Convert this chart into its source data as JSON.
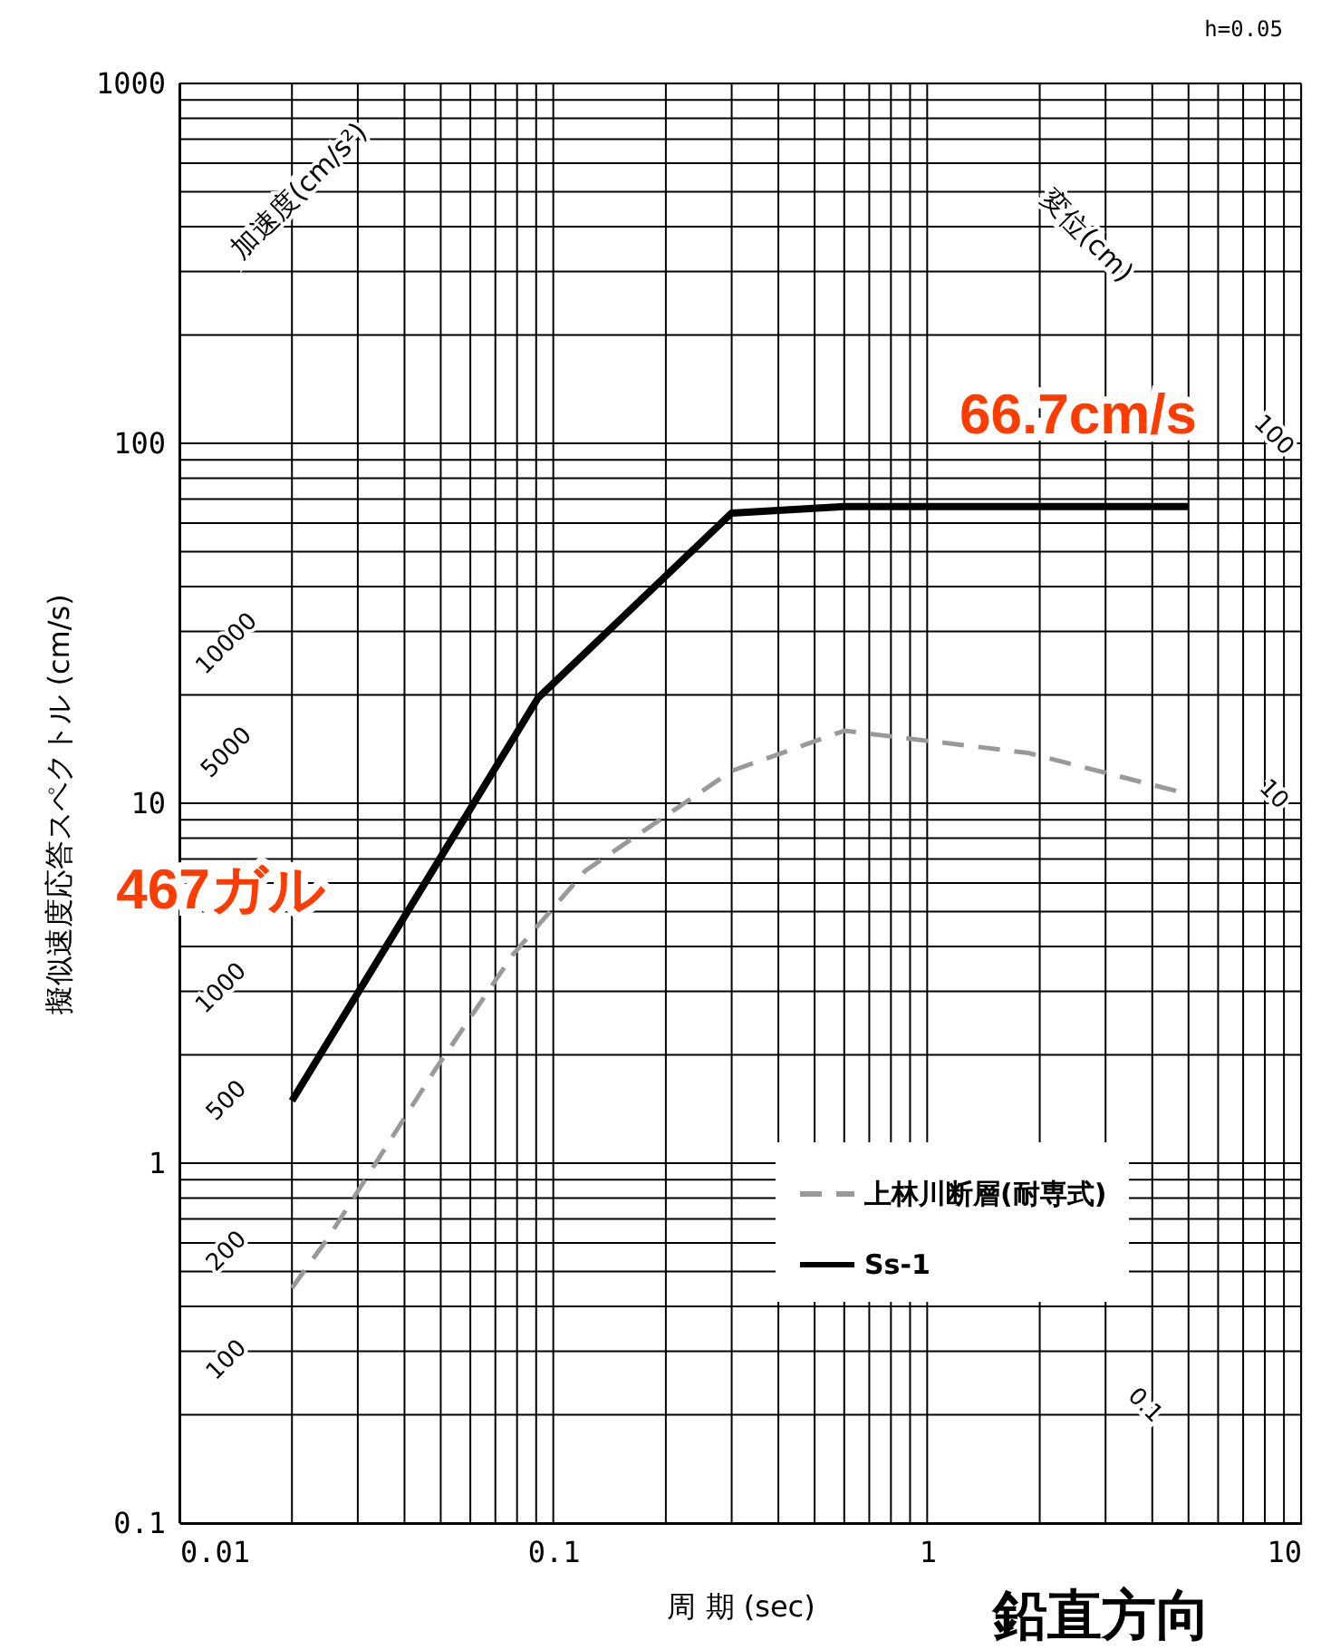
{
  "chart_data": {
    "type": "line",
    "xlabel": "周 期 (sec)",
    "ylabel": "擬似速度応答スペクトル (cm/s)",
    "log": "xy",
    "xlim": [
      0.01,
      10
    ],
    "ylim": [
      0.1,
      1000
    ],
    "xticks": [
      0.01,
      0.1,
      1,
      10
    ],
    "yticks": [
      0.1,
      1,
      10,
      100,
      1000
    ],
    "grid": true,
    "legend": "bottom right",
    "series": [
      {
        "name": "上林川断層(耐専式)",
        "color": "#999999",
        "line_style": "dashed",
        "x": [
          0.02,
          0.025,
          0.048,
          0.078,
          0.122,
          0.224,
          0.3,
          0.6,
          1.86,
          5.0
        ],
        "values": [
          0.45,
          0.62,
          1.8,
          3.8,
          6.5,
          10,
          12.3,
          15.9,
          13.8,
          10.6
        ]
      },
      {
        "name": "Ss-1",
        "color": "#000000",
        "line_style": "solid",
        "x": [
          0.02,
          0.091,
          0.3,
          0.6,
          5.0
        ],
        "values": [
          1.49,
          19.6,
          64,
          66.7,
          66.7
        ]
      }
    ],
    "annotations": [
      "加速度(cm/s²)",
      "変位(cm)",
      "10000",
      "5000",
      "1000",
      "500",
      "200",
      "100",
      "100",
      "10",
      "0.1",
      "66.7cm/s",
      "467ガル",
      "h=0.05",
      "鉛直方向"
    ]
  }
}
